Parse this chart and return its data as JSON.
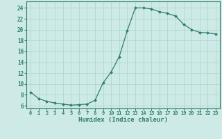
{
  "x": [
    0,
    1,
    2,
    3,
    4,
    5,
    6,
    7,
    8,
    9,
    10,
    11,
    12,
    13,
    14,
    15,
    16,
    17,
    18,
    19,
    20,
    21,
    22,
    23
  ],
  "y": [
    8.5,
    7.3,
    6.8,
    6.5,
    6.3,
    6.1,
    6.2,
    6.3,
    7.0,
    10.2,
    12.2,
    15.0,
    19.8,
    24.0,
    24.0,
    23.8,
    23.3,
    23.0,
    22.5,
    21.0,
    20.0,
    19.5,
    19.4,
    19.2
  ],
  "line_color": "#2e7d6e",
  "marker": "D",
  "marker_size": 2.0,
  "bg_color": "#ceeae6",
  "grid_color": "#a8d4ce",
  "tick_color": "#2e7d6e",
  "xlabel": "Humidex (Indice chaleur)",
  "xlabel_fontsize": 6.5,
  "xtick_fontsize": 5.0,
  "ytick_fontsize": 5.5,
  "ylabel_ticks": [
    6,
    8,
    10,
    12,
    14,
    16,
    18,
    20,
    22,
    24
  ],
  "ylim": [
    5.5,
    25.2
  ],
  "xlim": [
    -0.5,
    23.5
  ]
}
